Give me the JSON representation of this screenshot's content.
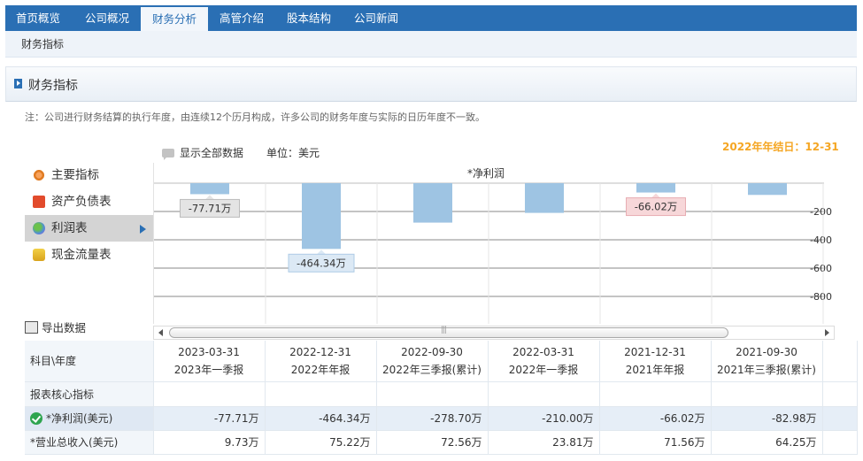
{
  "topnav": {
    "tabs": [
      {
        "label": "首页概览",
        "active": false
      },
      {
        "label": "公司概况",
        "active": false
      },
      {
        "label": "财务分析",
        "active": true
      },
      {
        "label": "高管介绍",
        "active": false
      },
      {
        "label": "股本结构",
        "active": false
      },
      {
        "label": "公司新闻",
        "active": false
      }
    ]
  },
  "subnav": {
    "item": "财务指标"
  },
  "panel": {
    "title": "财务指标"
  },
  "note": "注：公司进行财务结算的执行年度，由连续12个历月构成，许多公司的财务年度与实际的日历年度不一致。",
  "controls": {
    "show_all": "显示全部数据",
    "unit": "单位：美元",
    "year_end": "2022年年结日：12-31"
  },
  "sidemenu": {
    "items": [
      {
        "label": "主要指标",
        "icon": "indicator-icon",
        "active": false
      },
      {
        "label": "资产负债表",
        "icon": "balance-sheet-icon",
        "active": false
      },
      {
        "label": "利润表",
        "icon": "income-statement-icon",
        "active": true
      },
      {
        "label": "现金流量表",
        "icon": "cash-flow-icon",
        "active": false
      }
    ]
  },
  "export": "导出数据",
  "chart_data": {
    "type": "bar",
    "title": "*净利润",
    "categories": [
      "2023-03-31",
      "2022-12-31",
      "2022-09-30",
      "2022-03-31",
      "2021-12-31",
      "2021-09-30"
    ],
    "values": [
      -77.71,
      -464.34,
      -278.7,
      -210.0,
      -66.02,
      -82.98
    ],
    "data_labels": [
      "-77.71万",
      "-464.34万",
      null,
      null,
      "-66.02万",
      null
    ],
    "yticks": [
      "-200",
      "-400",
      "-600",
      "-800"
    ],
    "ylim": [
      -900,
      0
    ],
    "grid": true,
    "bar_color": "#9ec4e3"
  },
  "table": {
    "corner": "科目\\年度",
    "columns": [
      {
        "date": "2023-03-31",
        "period": "2023年一季报"
      },
      {
        "date": "2022-12-31",
        "period": "2022年年报"
      },
      {
        "date": "2022-09-30",
        "period": "2022年三季报(累计)"
      },
      {
        "date": "2022-03-31",
        "period": "2022年一季报"
      },
      {
        "date": "2021-12-31",
        "period": "2021年年报"
      },
      {
        "date": "2021-09-30",
        "period": "2021年三季报(累计)"
      }
    ],
    "section": "报表核心指标",
    "rows": [
      {
        "label": "*净利润(美元)",
        "values": [
          "-77.71万",
          "-464.34万",
          "-278.70万",
          "-210.00万",
          "-66.02万",
          "-82.98万"
        ]
      },
      {
        "label": "*营业总收入(美元)",
        "values": [
          "9.73万",
          "75.22万",
          "72.56万",
          "23.81万",
          "71.56万",
          "64.25万"
        ]
      }
    ]
  }
}
